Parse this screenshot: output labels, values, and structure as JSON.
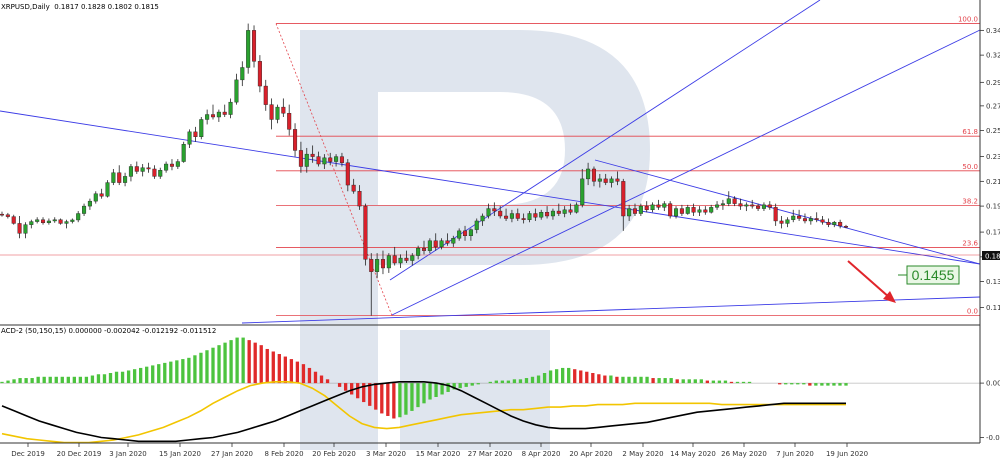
{
  "header": {
    "symbol": "XRPUSD,Daily",
    "ohlc": "0.1817 0.1828 0.1802 0.1815",
    "indicator": "ACD-2 (50,150,15) 0.000000 -0.002042 -0.012192 -0.011512"
  },
  "colors": {
    "up": "#2aa12f",
    "down": "#d9202b",
    "fib": "#e3434b",
    "channel": "#3c3ce6",
    "watermark": "#dfe5ee",
    "hist_up": "#4cc33e",
    "hist_down": "#e02a2a",
    "signal": "#f2c500",
    "main": "#000000",
    "target_box": "#e9f7e5",
    "target_text": "#2a8a2a"
  },
  "target_label": "0.1455",
  "price_badge": "0.181",
  "chart_data": [
    {
      "type": "candlestick",
      "title": "XRPUSD,Daily",
      "xlabel": "",
      "ylabel": "",
      "ylim": [
        0.11,
        0.35
      ],
      "x_ticks": [
        "Dec 2019",
        "20 Dec 2019",
        "3 Jan 2020",
        "15 Jan 2020",
        "27 Jan 2020",
        "8 Feb 2020",
        "20 Feb 2020",
        "3 Mar 2020",
        "15 Mar 2020",
        "27 Mar 2020",
        "8 Apr 2020",
        "20 Apr 2020",
        "2 May 2020",
        "14 May 2020",
        "26 May 2020",
        "7 Jun 2020",
        "19 Jun 2020"
      ],
      "y_ticks": [
        "0.340",
        "0.320",
        "0.298",
        "0.279",
        "0.259",
        "0.238",
        "0.218",
        "0.198",
        "0.177",
        "0.157",
        "0.137",
        "0.116"
      ],
      "fibonacci_levels": [
        {
          "label": "100.0",
          "value": 0.3455
        },
        {
          "label": "61.8",
          "value": 0.2545
        },
        {
          "label": "50.0",
          "value": 0.2265
        },
        {
          "label": "38.2",
          "value": 0.1985
        },
        {
          "label": "23.6",
          "value": 0.1645
        },
        {
          "label": "0.0",
          "value": 0.1095
        }
      ],
      "target": 0.1455,
      "last_close": 0.1815,
      "candles": [
        [
          0.1915,
          0.1935,
          0.1895,
          0.191
        ],
        [
          0.191,
          0.1925,
          0.188,
          0.1895
        ],
        [
          0.1895,
          0.191,
          0.183,
          0.184
        ],
        [
          0.184,
          0.19,
          0.172,
          0.176
        ],
        [
          0.176,
          0.185,
          0.172,
          0.183
        ],
        [
          0.183,
          0.187,
          0.18,
          0.1855
        ],
        [
          0.1855,
          0.189,
          0.184,
          0.187
        ],
        [
          0.187,
          0.189,
          0.183,
          0.1845
        ],
        [
          0.1845,
          0.188,
          0.183,
          0.186
        ],
        [
          0.186,
          0.189,
          0.1845,
          0.187
        ],
        [
          0.187,
          0.188,
          0.183,
          0.184
        ],
        [
          0.184,
          0.187,
          0.18,
          0.1855
        ],
        [
          0.1855,
          0.188,
          0.184,
          0.1868
        ],
        [
          0.1868,
          0.194,
          0.185,
          0.192
        ],
        [
          0.192,
          0.2,
          0.19,
          0.198
        ],
        [
          0.198,
          0.204,
          0.195,
          0.202
        ],
        [
          0.202,
          0.21,
          0.2,
          0.208
        ],
        [
          0.208,
          0.212,
          0.204,
          0.206
        ],
        [
          0.206,
          0.219,
          0.205,
          0.217
        ],
        [
          0.217,
          0.228,
          0.215,
          0.225
        ],
        [
          0.225,
          0.231,
          0.215,
          0.217
        ],
        [
          0.217,
          0.225,
          0.214,
          0.222
        ],
        [
          0.222,
          0.232,
          0.218,
          0.23
        ],
        [
          0.23,
          0.234,
          0.224,
          0.226
        ],
        [
          0.226,
          0.232,
          0.222,
          0.229
        ],
        [
          0.229,
          0.233,
          0.225,
          0.228
        ],
        [
          0.228,
          0.231,
          0.22,
          0.222
        ],
        [
          0.222,
          0.229,
          0.22,
          0.227
        ],
        [
          0.227,
          0.234,
          0.225,
          0.232
        ],
        [
          0.232,
          0.236,
          0.227,
          0.23
        ],
        [
          0.23,
          0.236,
          0.228,
          0.234
        ],
        [
          0.234,
          0.25,
          0.233,
          0.248
        ],
        [
          0.248,
          0.26,
          0.245,
          0.258
        ],
        [
          0.258,
          0.262,
          0.25,
          0.254
        ],
        [
          0.254,
          0.27,
          0.252,
          0.268
        ],
        [
          0.268,
          0.276,
          0.264,
          0.272
        ],
        [
          0.272,
          0.28,
          0.268,
          0.27
        ],
        [
          0.27,
          0.276,
          0.266,
          0.274
        ],
        [
          0.274,
          0.28,
          0.27,
          0.272
        ],
        [
          0.272,
          0.285,
          0.269,
          0.282
        ],
        [
          0.282,
          0.305,
          0.28,
          0.3
        ],
        [
          0.3,
          0.315,
          0.295,
          0.31
        ],
        [
          0.31,
          0.3455,
          0.305,
          0.34
        ],
        [
          0.34,
          0.344,
          0.31,
          0.315
        ],
        [
          0.315,
          0.32,
          0.29,
          0.295
        ],
        [
          0.295,
          0.3,
          0.275,
          0.28
        ],
        [
          0.28,
          0.285,
          0.26,
          0.268
        ],
        [
          0.268,
          0.28,
          0.265,
          0.278
        ],
        [
          0.278,
          0.285,
          0.27,
          0.273
        ],
        [
          0.273,
          0.28,
          0.255,
          0.26
        ],
        [
          0.26,
          0.265,
          0.238,
          0.243
        ],
        [
          0.243,
          0.25,
          0.225,
          0.23
        ],
        [
          0.23,
          0.245,
          0.225,
          0.24
        ],
        [
          0.24,
          0.247,
          0.233,
          0.238
        ],
        [
          0.238,
          0.242,
          0.23,
          0.232
        ],
        [
          0.232,
          0.24,
          0.228,
          0.237
        ],
        [
          0.237,
          0.241,
          0.231,
          0.234
        ],
        [
          0.234,
          0.24,
          0.23,
          0.238
        ],
        [
          0.238,
          0.241,
          0.23,
          0.233
        ],
        [
          0.233,
          0.236,
          0.21,
          0.215
        ],
        [
          0.215,
          0.22,
          0.208,
          0.21
        ],
        [
          0.21,
          0.215,
          0.195,
          0.198
        ],
        [
          0.198,
          0.2,
          0.15,
          0.155
        ],
        [
          0.155,
          0.16,
          0.1095,
          0.145
        ],
        [
          0.145,
          0.16,
          0.14,
          0.155
        ],
        [
          0.155,
          0.162,
          0.143,
          0.148
        ],
        [
          0.148,
          0.16,
          0.144,
          0.158
        ],
        [
          0.158,
          0.165,
          0.15,
          0.152
        ],
        [
          0.152,
          0.159,
          0.148,
          0.156
        ],
        [
          0.156,
          0.162,
          0.152,
          0.154
        ],
        [
          0.154,
          0.16,
          0.15,
          0.158
        ],
        [
          0.158,
          0.166,
          0.155,
          0.164
        ],
        [
          0.164,
          0.17,
          0.159,
          0.162
        ],
        [
          0.162,
          0.172,
          0.16,
          0.17
        ],
        [
          0.17,
          0.176,
          0.162,
          0.165
        ],
        [
          0.165,
          0.172,
          0.163,
          0.17
        ],
        [
          0.17,
          0.176,
          0.166,
          0.168
        ],
        [
          0.168,
          0.174,
          0.165,
          0.172
        ],
        [
          0.172,
          0.18,
          0.17,
          0.178
        ],
        [
          0.178,
          0.182,
          0.17,
          0.174
        ],
        [
          0.174,
          0.18,
          0.17,
          0.179
        ],
        [
          0.179,
          0.188,
          0.176,
          0.186
        ],
        [
          0.186,
          0.192,
          0.182,
          0.19
        ],
        [
          0.19,
          0.2,
          0.188,
          0.196
        ],
        [
          0.196,
          0.201,
          0.19,
          0.194
        ],
        [
          0.194,
          0.198,
          0.188,
          0.19
        ],
        [
          0.19,
          0.196,
          0.186,
          0.188
        ],
        [
          0.188,
          0.195,
          0.185,
          0.192
        ],
        [
          0.192,
          0.196,
          0.186,
          0.188
        ],
        [
          0.188,
          0.192,
          0.184,
          0.187
        ],
        [
          0.187,
          0.194,
          0.185,
          0.192
        ],
        [
          0.192,
          0.196,
          0.186,
          0.189
        ],
        [
          0.189,
          0.195,
          0.187,
          0.193
        ],
        [
          0.193,
          0.198,
          0.188,
          0.19
        ],
        [
          0.19,
          0.196,
          0.187,
          0.194
        ],
        [
          0.194,
          0.2,
          0.19,
          0.192
        ],
        [
          0.192,
          0.198,
          0.189,
          0.195
        ],
        [
          0.195,
          0.2,
          0.191,
          0.193
        ],
        [
          0.193,
          0.201,
          0.192,
          0.199
        ],
        [
          0.199,
          0.228,
          0.197,
          0.22
        ],
        [
          0.22,
          0.233,
          0.215,
          0.228
        ],
        [
          0.228,
          0.23,
          0.214,
          0.218
        ],
        [
          0.218,
          0.224,
          0.213,
          0.22
        ],
        [
          0.22,
          0.224,
          0.215,
          0.217
        ],
        [
          0.217,
          0.222,
          0.213,
          0.22
        ],
        [
          0.22,
          0.226,
          0.215,
          0.218
        ],
        [
          0.218,
          0.22,
          0.178,
          0.19
        ],
        [
          0.19,
          0.199,
          0.186,
          0.196
        ],
        [
          0.196,
          0.2,
          0.19,
          0.192
        ],
        [
          0.192,
          0.2,
          0.19,
          0.198
        ],
        [
          0.198,
          0.202,
          0.193,
          0.195
        ],
        [
          0.195,
          0.201,
          0.193,
          0.199
        ],
        [
          0.199,
          0.203,
          0.195,
          0.197
        ],
        [
          0.197,
          0.202,
          0.194,
          0.2
        ],
        [
          0.2,
          0.202,
          0.188,
          0.19
        ],
        [
          0.19,
          0.198,
          0.188,
          0.196
        ],
        [
          0.196,
          0.199,
          0.19,
          0.192
        ],
        [
          0.192,
          0.199,
          0.191,
          0.197
        ],
        [
          0.197,
          0.2,
          0.19,
          0.193
        ],
        [
          0.193,
          0.198,
          0.19,
          0.195
        ],
        [
          0.195,
          0.198,
          0.191,
          0.193
        ],
        [
          0.193,
          0.199,
          0.192,
          0.197
        ],
        [
          0.197,
          0.202,
          0.195,
          0.199
        ],
        [
          0.199,
          0.203,
          0.195,
          0.2
        ],
        [
          0.2,
          0.21,
          0.198,
          0.204
        ],
        [
          0.204,
          0.206,
          0.198,
          0.2
        ],
        [
          0.2,
          0.204,
          0.195,
          0.198
        ],
        [
          0.198,
          0.201,
          0.194,
          0.199
        ],
        [
          0.199,
          0.203,
          0.196,
          0.198
        ],
        [
          0.198,
          0.2,
          0.194,
          0.196
        ],
        [
          0.196,
          0.201,
          0.194,
          0.199
        ],
        [
          0.199,
          0.202,
          0.195,
          0.197
        ],
        [
          0.197,
          0.2,
          0.182,
          0.186
        ],
        [
          0.186,
          0.19,
          0.18,
          0.184
        ],
        [
          0.184,
          0.189,
          0.181,
          0.187
        ],
        [
          0.187,
          0.195,
          0.185,
          0.19
        ],
        [
          0.19,
          0.195,
          0.186,
          0.188
        ],
        [
          0.188,
          0.192,
          0.184,
          0.186
        ],
        [
          0.186,
          0.19,
          0.183,
          0.188
        ],
        [
          0.188,
          0.193,
          0.185,
          0.187
        ],
        [
          0.187,
          0.19,
          0.183,
          0.185
        ],
        [
          0.185,
          0.188,
          0.181,
          0.183
        ],
        [
          0.183,
          0.186,
          0.181,
          0.185
        ],
        [
          0.185,
          0.187,
          0.18,
          0.182
        ],
        [
          0.1817,
          0.1828,
          0.1802,
          0.1815
        ]
      ]
    },
    {
      "type": "histogram",
      "title": "ACD-2 (50,150,15) 0.000000 -0.002042 -0.012192 -0.011512",
      "y_ticks": [
        "0.00",
        "-0.04"
      ],
      "ylim": [
        -0.045,
        0.042
      ],
      "histogram": [
        0.001,
        0.002,
        0.003,
        0.004,
        0.004,
        0.004,
        0.005,
        0.005,
        0.005,
        0.005,
        0.005,
        0.005,
        0.005,
        0.005,
        0.005,
        0.006,
        0.007,
        0.007,
        0.008,
        0.009,
        0.009,
        0.01,
        0.011,
        0.012,
        0.013,
        0.014,
        0.015,
        0.016,
        0.017,
        0.018,
        0.019,
        0.02,
        0.022,
        0.024,
        0.026,
        0.028,
        0.03,
        0.032,
        0.034,
        0.036,
        0.036,
        0.034,
        0.032,
        0.03,
        0.027,
        0.025,
        0.023,
        0.021,
        0.019,
        0.017,
        0.015,
        0.012,
        0.009,
        0.006,
        0.003,
        0.0,
        -0.003,
        -0.006,
        -0.009,
        -0.012,
        -0.015,
        -0.018,
        -0.021,
        -0.024,
        -0.026,
        -0.028,
        -0.027,
        -0.025,
        -0.022,
        -0.019,
        -0.016,
        -0.013,
        -0.011,
        -0.009,
        -0.007,
        -0.005,
        -0.004,
        -0.003,
        -0.002,
        -0.001,
        0.0,
        0.001,
        0.002,
        0.002,
        0.002,
        0.003,
        0.003,
        0.004,
        0.005,
        0.006,
        0.008,
        0.01,
        0.011,
        0.012,
        0.012,
        0.011,
        0.01,
        0.009,
        0.008,
        0.007,
        0.006,
        0.006,
        0.005,
        0.005,
        0.005,
        0.005,
        0.005,
        0.005,
        0.004,
        0.004,
        0.004,
        0.004,
        0.003,
        0.003,
        0.003,
        0.003,
        0.003,
        0.002,
        0.002,
        0.002,
        0.002,
        0.001,
        0.001,
        0.001,
        0.001,
        0.0,
        0.0,
        0.0,
        0.0,
        -0.001,
        -0.001,
        -0.001,
        -0.001,
        -0.001,
        -0.002,
        -0.002,
        -0.002,
        -0.002,
        -0.002,
        -0.002,
        -0.002
      ],
      "main_line": [
        -0.018,
        -0.022,
        -0.026,
        -0.03,
        -0.033,
        -0.036,
        -0.039,
        -0.041,
        -0.043,
        -0.044,
        -0.045,
        -0.046,
        -0.046,
        -0.046,
        -0.046,
        -0.045,
        -0.044,
        -0.043,
        -0.041,
        -0.039,
        -0.036,
        -0.033,
        -0.03,
        -0.026,
        -0.022,
        -0.018,
        -0.014,
        -0.01,
        -0.006,
        -0.003,
        -0.001,
        0.0,
        0.001,
        0.001,
        0.001,
        0.0,
        -0.002,
        -0.006,
        -0.011,
        -0.016,
        -0.021,
        -0.026,
        -0.03,
        -0.033,
        -0.035,
        -0.036,
        -0.036,
        -0.036,
        -0.035,
        -0.034,
        -0.033,
        -0.032,
        -0.031,
        -0.029,
        -0.027,
        -0.025,
        -0.023,
        -0.022,
        -0.021,
        -0.02,
        -0.019,
        -0.018,
        -0.017,
        -0.016,
        -0.016,
        -0.016,
        -0.016,
        -0.016,
        -0.016
      ],
      "signal_line": [
        -0.04,
        -0.042,
        -0.044,
        -0.045,
        -0.046,
        -0.047,
        -0.047,
        -0.047,
        -0.046,
        -0.045,
        -0.043,
        -0.041,
        -0.038,
        -0.035,
        -0.031,
        -0.027,
        -0.022,
        -0.016,
        -0.011,
        -0.006,
        -0.002,
        0.0,
        0.001,
        0.001,
        0.0,
        -0.004,
        -0.01,
        -0.018,
        -0.026,
        -0.032,
        -0.035,
        -0.036,
        -0.035,
        -0.033,
        -0.031,
        -0.029,
        -0.027,
        -0.025,
        -0.024,
        -0.023,
        -0.022,
        -0.021,
        -0.021,
        -0.02,
        -0.019,
        -0.019,
        -0.018,
        -0.018,
        -0.017,
        -0.017,
        -0.017,
        -0.016,
        -0.016,
        -0.016,
        -0.016,
        -0.016,
        -0.016,
        -0.016,
        -0.017,
        -0.017,
        -0.017,
        -0.017,
        -0.017,
        -0.017,
        -0.017,
        -0.017,
        -0.017,
        -0.017,
        -0.017
      ]
    }
  ]
}
